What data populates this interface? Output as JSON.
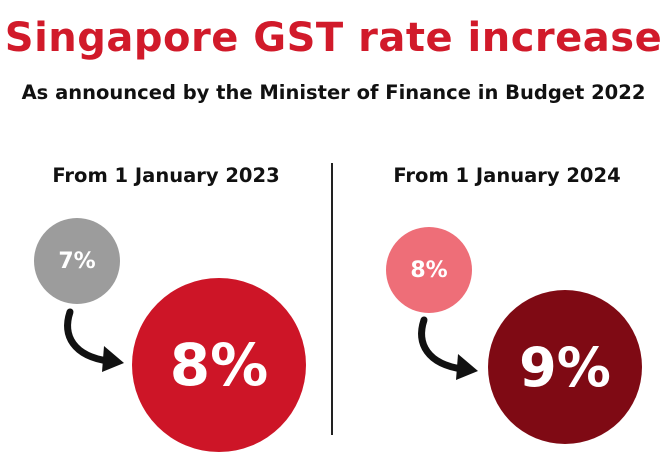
{
  "title": "Singapore GST rate increase",
  "subtitle": "As announced by the Minister of Finance in Budget 2022",
  "colors": {
    "title_red": "#d11a2a",
    "circle_grey": "#9c9c9c",
    "circle_red": "#cd1527",
    "circle_pink": "#ee6e78",
    "circle_maroon": "#7f0a14"
  },
  "left": {
    "heading": "From 1 January 2023",
    "from_rate": "7%",
    "to_rate": "8%"
  },
  "right": {
    "heading": "From 1 January 2024",
    "from_rate": "8%",
    "to_rate": "9%"
  },
  "icons": {
    "arrow": "curved-arrow-icon"
  }
}
